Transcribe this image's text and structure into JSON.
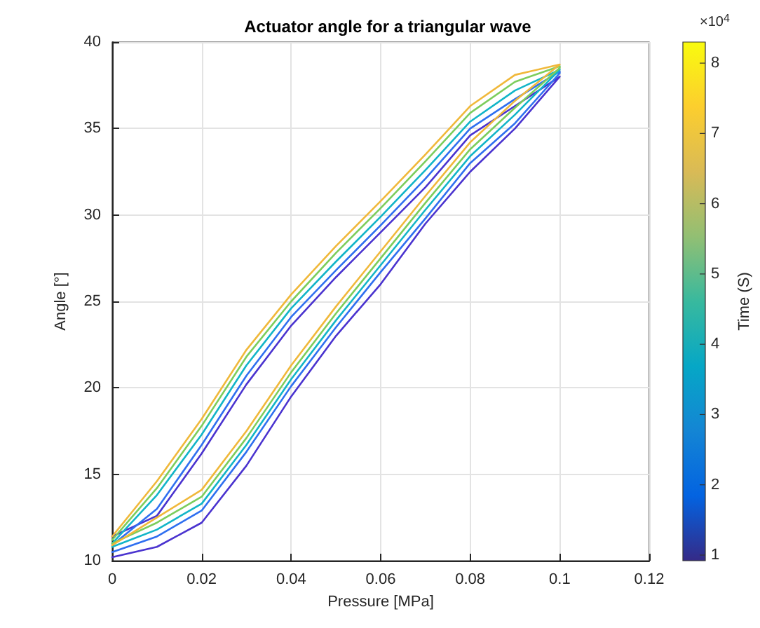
{
  "chart_data": {
    "type": "line",
    "title": "Actuator angle for a triangular wave",
    "xlabel": "Pressure [MPa]",
    "ylabel": "Angle [°]",
    "clabel": "Time (S)",
    "annotations": [
      "×10$^{4}$"
    ],
    "xlim": [
      0,
      0.12
    ],
    "xticks": [
      0,
      0.02,
      0.04,
      0.06,
      0.08,
      0.1,
      0.12
    ],
    "ylim": [
      10,
      40
    ],
    "yticks": [
      10,
      15,
      20,
      25,
      30,
      35,
      40
    ],
    "clim": [
      0.92,
      8.3
    ],
    "cticks": [
      1,
      2,
      3,
      4,
      5,
      6,
      7,
      8
    ],
    "grid": true,
    "marker": "none",
    "line_style": "solid",
    "series": [
      {
        "color": "#4a33cf",
        "x": [
          0,
          0.01,
          0.02,
          0.03,
          0.04,
          0.05,
          0.06,
          0.07,
          0.08,
          0.09,
          0.1,
          0.1,
          0.09,
          0.08,
          0.07,
          0.06,
          0.05,
          0.04,
          0.03,
          0.02,
          0.01,
          0
        ],
        "values": [
          10.2,
          10.8,
          12.2,
          15.5,
          19.5,
          23,
          26,
          29.5,
          32.5,
          35,
          38,
          38,
          36.3,
          34.6,
          31.6,
          29,
          26.4,
          23.6,
          20.2,
          16.2,
          12.6,
          11.4
        ]
      },
      {
        "color": "#2f6ff0",
        "x": [
          0,
          0.01,
          0.02,
          0.03,
          0.04,
          0.05,
          0.06,
          0.07,
          0.08,
          0.09,
          0.1,
          0.1,
          0.09,
          0.08,
          0.07,
          0.06,
          0.05,
          0.04,
          0.03,
          0.02,
          0.01,
          0
        ],
        "values": [
          10.5,
          11.4,
          12.9,
          16.3,
          20.1,
          23.5,
          26.7,
          29.8,
          33,
          35.3,
          38.2,
          38.3,
          36.7,
          35,
          32.1,
          29.4,
          26.8,
          24.1,
          20.7,
          16.7,
          13,
          10.9
        ]
      },
      {
        "color": "#12b5c8",
        "x": [
          0,
          0.01,
          0.02,
          0.03,
          0.04,
          0.05,
          0.06,
          0.07,
          0.08,
          0.09,
          0.1,
          0.1,
          0.09,
          0.08,
          0.07,
          0.06,
          0.05,
          0.04,
          0.03,
          0.02,
          0.01,
          0
        ],
        "values": [
          10.8,
          11.8,
          13.3,
          16.7,
          20.5,
          23.9,
          27.1,
          30.3,
          33.4,
          35.8,
          38.4,
          38.4,
          37.2,
          35.4,
          32.6,
          29.9,
          27.3,
          24.6,
          21.3,
          17.3,
          13.8,
          11
        ]
      },
      {
        "color": "#7ccd5c",
        "x": [
          0,
          0.01,
          0.02,
          0.03,
          0.04,
          0.05,
          0.06,
          0.07,
          0.08,
          0.09,
          0.1,
          0.1,
          0.09,
          0.08,
          0.07,
          0.06,
          0.05,
          0.04,
          0.03,
          0.02,
          0.01,
          0
        ],
        "values": [
          11,
          12.2,
          13.7,
          17.1,
          20.9,
          24.3,
          27.5,
          30.7,
          33.8,
          36.2,
          38.5,
          38.6,
          37.7,
          35.9,
          33.1,
          30.4,
          27.8,
          25,
          21.8,
          17.8,
          14.2,
          11.2
        ]
      },
      {
        "color": "#f0b83a",
        "x": [
          0,
          0.01,
          0.02,
          0.03,
          0.04,
          0.05,
          0.06,
          0.07,
          0.08,
          0.09,
          0.1,
          0.1,
          0.09,
          0.08,
          0.07,
          0.06,
          0.05,
          0.04,
          0.03,
          0.02,
          0.01,
          0
        ],
        "values": [
          10.9,
          12.5,
          14.1,
          17.5,
          21.3,
          24.7,
          27.9,
          31.1,
          34.2,
          36.6,
          38.7,
          38.7,
          38.1,
          36.3,
          33.5,
          30.8,
          28.2,
          25.4,
          22.2,
          18.2,
          14.6,
          11.4
        ]
      }
    ]
  }
}
